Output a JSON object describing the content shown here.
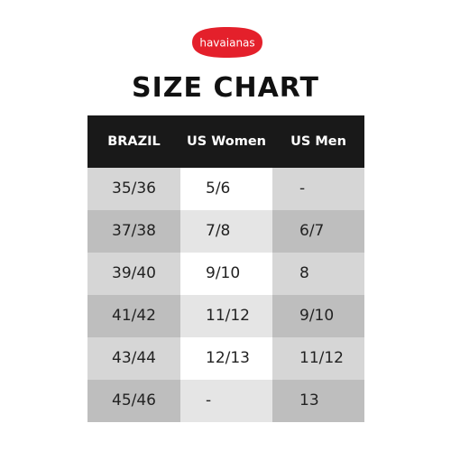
{
  "brand": {
    "logo_text": "havaianas",
    "logo_color": "#e4202b"
  },
  "title": "SIZE CHART",
  "table": {
    "headers": [
      "BRAZIL",
      "US Women",
      "US Men"
    ],
    "rows": [
      [
        "35/36",
        "5/6",
        "-"
      ],
      [
        "37/38",
        "7/8",
        "6/7"
      ],
      [
        "39/40",
        "9/10",
        "8"
      ],
      [
        "41/42",
        "11/12",
        "9/10"
      ],
      [
        "43/44",
        "12/13",
        "11/12"
      ],
      [
        "45/46",
        "-",
        "13"
      ]
    ]
  },
  "colors": {
    "header_bg": "#191919",
    "header_text": "#ffffff",
    "odd_row_dark": "#d6d6d6",
    "odd_row_light": "#ffffff",
    "even_row_dark": "#bebebe",
    "even_row_light": "#e5e5e5"
  }
}
